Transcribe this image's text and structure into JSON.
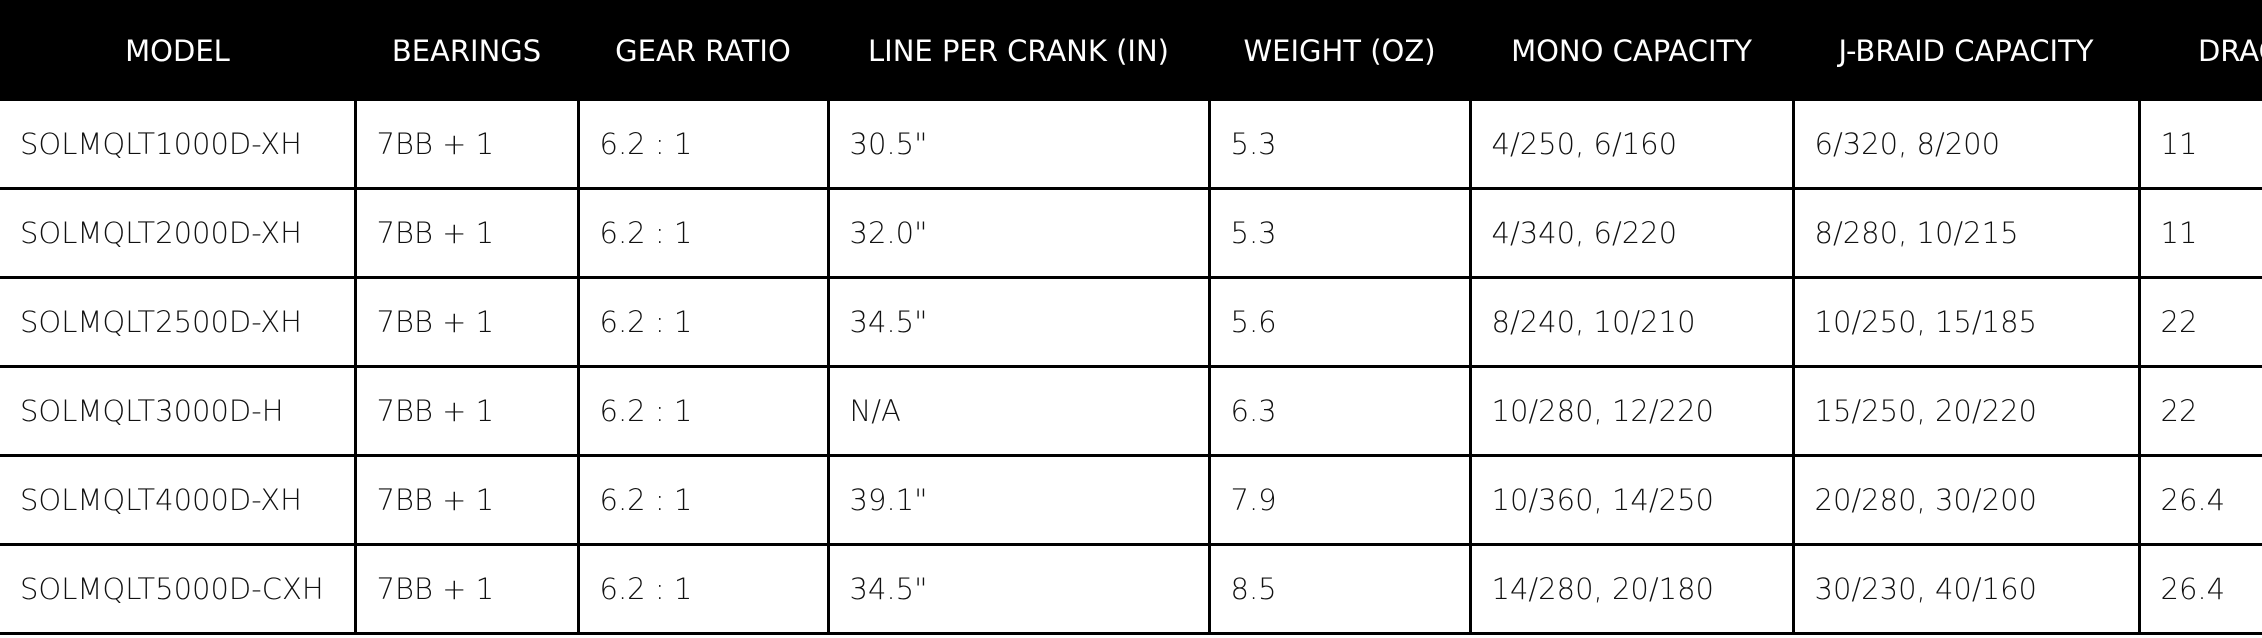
{
  "table": {
    "headers": [
      "MODEL",
      "BEARINGS",
      "GEAR RATIO",
      "LINE PER CRANK (IN)",
      "WEIGHT (OZ)",
      "MONO CAPACITY",
      "J-BRAID CAPACITY",
      "DRAG"
    ],
    "rows": [
      [
        "SOLMQLT1000D-XH",
        "7BB + 1",
        "6.2 : 1",
        "30.5\"",
        "5.3",
        "4/250, 6/160",
        "6/320, 8/200",
        "11"
      ],
      [
        "SOLMQLT2000D-XH",
        "7BB + 1",
        "6.2 : 1",
        "32.0\"",
        "5.3",
        "4/340, 6/220",
        "8/280, 10/215",
        "11"
      ],
      [
        "SOLMQLT2500D-XH",
        "7BB + 1",
        "6.2 : 1",
        "34.5\"",
        "5.6",
        "8/240, 10/210",
        "10/250, 15/185",
        "22"
      ],
      [
        "SOLMQLT3000D-H",
        "7BB + 1",
        "6.2 : 1",
        "N/A",
        "6.3",
        "10/280, 12/220",
        "15/250, 20/220",
        "22"
      ],
      [
        "SOLMQLT4000D-XH",
        "7BB + 1",
        "6.2 : 1",
        "39.1\"",
        "7.9",
        "10/360, 14/250",
        "20/280, 30/200",
        "26.4"
      ],
      [
        "SOLMQLT5000D-CXH",
        "7BB + 1",
        "6.2 : 1",
        "34.5\"",
        "8.5",
        "14/280, 20/180",
        "30/230, 40/160",
        "26.4"
      ]
    ]
  }
}
